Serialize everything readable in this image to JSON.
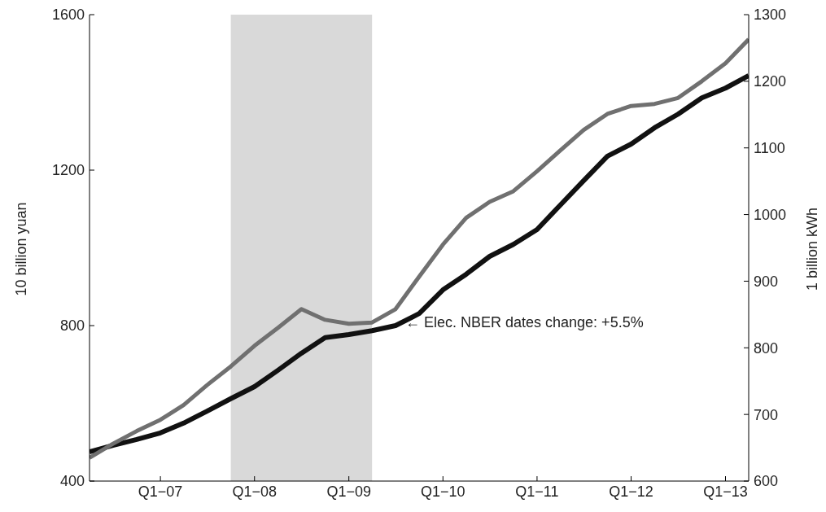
{
  "chart_data": {
    "type": "line",
    "ylabel": "10 billion yuan",
    "y2label": "1 billion kWh",
    "x": [
      "2006-04",
      "2006-07",
      "2006-10",
      "2007-01",
      "2007-04",
      "2007-07",
      "2007-10",
      "2008-01",
      "2008-04",
      "2008-07",
      "2008-10",
      "2009-01",
      "2009-04",
      "2009-07",
      "2009-10",
      "2010-01",
      "2010-04",
      "2010-07",
      "2010-10",
      "2011-01",
      "2011-04",
      "2011-07",
      "2011-10",
      "2012-01",
      "2012-04",
      "2012-07",
      "2012-10",
      "2013-01",
      "2013-04"
    ],
    "series": [
      {
        "color": "#111111",
        "values": [
          475,
          492,
          507,
          524,
          549,
          580,
          612,
          643,
          685,
          729,
          769,
          777,
          787,
          800,
          831,
          892,
          932,
          978,
          1009,
          1047,
          1110,
          1173,
          1236,
          1267,
          1309,
          1344,
          1386,
          1411,
          1443
        ]
      },
      {
        "color": "#707070",
        "axis": "y2",
        "values": [
          635,
          656,
          675,
          692,
          714,
          744,
          772,
          803,
          830,
          858,
          842,
          836,
          838,
          858,
          907,
          955,
          995,
          1019,
          1035,
          1065,
          1096,
          1127,
          1151,
          1163,
          1166,
          1175,
          1200,
          1227,
          1263
        ]
      }
    ],
    "xlim": [
      "2006-04",
      "2013-04"
    ],
    "xticks": [
      {
        "value": "2007-01",
        "label": "Q1−07"
      },
      {
        "value": "2008-01",
        "label": "Q1−08"
      },
      {
        "value": "2009-01",
        "label": "Q1−09"
      },
      {
        "value": "2010-01",
        "label": "Q1−10"
      },
      {
        "value": "2011-01",
        "label": "Q1−11"
      },
      {
        "value": "2012-01",
        "label": "Q1−12"
      },
      {
        "value": "2013-01",
        "label": "Q1−13"
      }
    ],
    "ylim": [
      400,
      1600
    ],
    "yticks": [
      400,
      800,
      1200,
      1600
    ],
    "y2lim": [
      600,
      1300
    ],
    "y2ticks": [
      600,
      700,
      800,
      900,
      1000,
      1100,
      1200,
      1300
    ],
    "bands": [
      {
        "axis": "x",
        "from": "2007-10",
        "to": "2009-04",
        "color": "#d9d9d9"
      }
    ],
    "annotations": [
      "← Elec. NBER dates change: +5.5%"
    ],
    "grid": false,
    "legend": false,
    "marker": "none",
    "line_style": "solid"
  }
}
